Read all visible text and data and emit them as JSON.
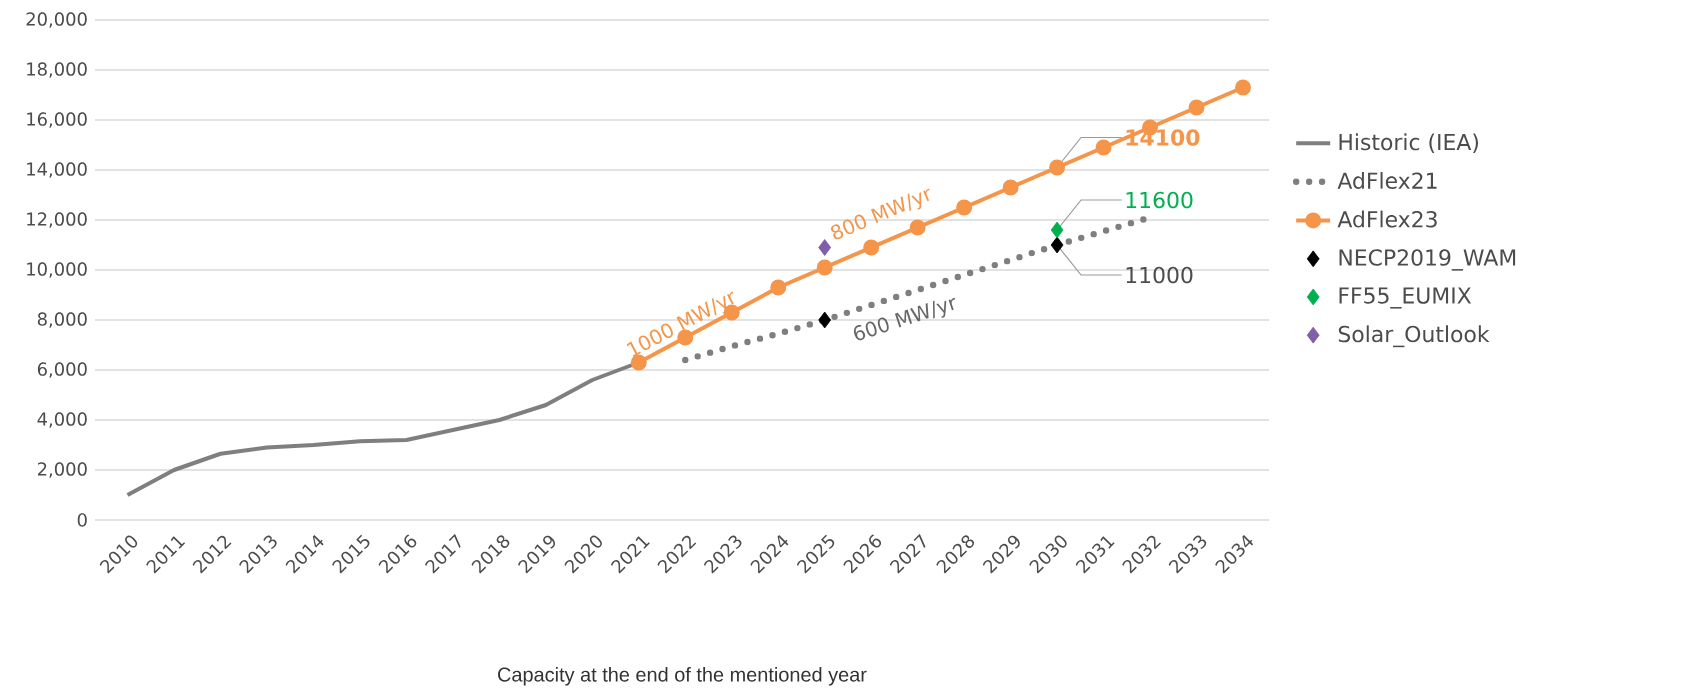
{
  "chart_data": {
    "type": "line",
    "xlabel": "Capacity at the end of the mentioned year",
    "categories": [
      "2010",
      "2011",
      "2012",
      "2013",
      "2014",
      "2015",
      "2016",
      "2017",
      "2018",
      "2019",
      "2020",
      "2021",
      "2022",
      "2023",
      "2024",
      "2025",
      "2026",
      "2027",
      "2028",
      "2029",
      "2030",
      "2031",
      "2032",
      "2033",
      "2034"
    ],
    "series": [
      {
        "name": "Historic (IEA)",
        "color": "#7f7f7f",
        "marker": "none",
        "line_style": "solid",
        "values": [
          1000,
          2000,
          2650,
          2900,
          3000,
          3150,
          3200,
          3600,
          4000,
          4600,
          5600,
          6300,
          null,
          null,
          null,
          null,
          null,
          null,
          null,
          null,
          null,
          null,
          null,
          null,
          null
        ]
      },
      {
        "name": "AdFlex21",
        "color": "#7f7f7f",
        "marker": "none",
        "line_style": "dotted",
        "values": [
          null,
          null,
          null,
          null,
          null,
          null,
          null,
          null,
          null,
          null,
          null,
          null,
          6400,
          6950,
          7450,
          8000,
          8600,
          9200,
          9800,
          10400,
          11000,
          11550,
          12100,
          null,
          null
        ]
      },
      {
        "name": "AdFlex23",
        "color": "#f4954a",
        "marker": "circle",
        "line_style": "solid",
        "values": [
          null,
          null,
          null,
          null,
          null,
          null,
          null,
          null,
          null,
          null,
          null,
          6300,
          7300,
          8300,
          9300,
          10100,
          10900,
          11700,
          12500,
          13300,
          14100,
          14900,
          15700,
          16500,
          17300
        ],
        "value_labels": [
          null,
          null,
          null,
          null,
          null,
          null,
          null,
          null,
          null,
          null,
          null,
          null,
          null,
          null,
          null,
          null,
          null,
          null,
          null,
          null,
          "14100",
          null,
          null,
          null,
          null
        ]
      },
      {
        "name": "NECP2019_WAM",
        "type": "scatter",
        "color": "#000000",
        "marker": "diamond",
        "values": [
          null,
          null,
          null,
          null,
          null,
          null,
          null,
          null,
          null,
          null,
          null,
          null,
          null,
          null,
          null,
          8000,
          null,
          null,
          null,
          null,
          11000,
          null,
          null,
          null,
          null
        ],
        "value_labels": [
          null,
          null,
          null,
          null,
          null,
          null,
          null,
          null,
          null,
          null,
          null,
          null,
          null,
          null,
          null,
          null,
          null,
          null,
          null,
          null,
          "11000",
          null,
          null,
          null,
          null
        ]
      },
      {
        "name": "FF55_EUMIX",
        "type": "scatter",
        "color": "#00b050",
        "marker": "diamond",
        "values": [
          null,
          null,
          null,
          null,
          null,
          null,
          null,
          null,
          null,
          null,
          null,
          null,
          null,
          null,
          null,
          null,
          null,
          null,
          null,
          null,
          11600,
          null,
          null,
          null,
          null
        ],
        "value_labels": [
          null,
          null,
          null,
          null,
          null,
          null,
          null,
          null,
          null,
          null,
          null,
          null,
          null,
          null,
          null,
          null,
          null,
          null,
          null,
          null,
          "11600",
          null,
          null,
          null,
          null
        ]
      },
      {
        "name": "Solar_Outlook",
        "type": "scatter",
        "color": "#7f5fa8",
        "marker": "diamond",
        "values": [
          null,
          null,
          null,
          null,
          null,
          null,
          null,
          null,
          null,
          null,
          null,
          null,
          null,
          null,
          null,
          10900,
          null,
          null,
          null,
          null,
          null,
          null,
          null,
          null,
          null
        ]
      }
    ],
    "ylim": [
      0,
      20000
    ],
    "yticks": [
      {
        "value": 0,
        "label": "0"
      },
      {
        "value": 2000,
        "label": "2,000"
      },
      {
        "value": 4000,
        "label": "4,000"
      },
      {
        "value": 6000,
        "label": "6,000"
      },
      {
        "value": 8000,
        "label": "8,000"
      },
      {
        "value": 10000,
        "label": "10,000"
      },
      {
        "value": 12000,
        "label": "12,000"
      },
      {
        "value": 14000,
        "label": "14,000"
      },
      {
        "value": 16000,
        "label": "16,000"
      },
      {
        "value": 18000,
        "label": "18,000"
      },
      {
        "value": 20000,
        "label": "20,000"
      }
    ],
    "grid": "y",
    "legend": "right",
    "annotations": [
      "1000 MW/yr",
      "800 MW/yr",
      "600 MW/yr"
    ]
  }
}
